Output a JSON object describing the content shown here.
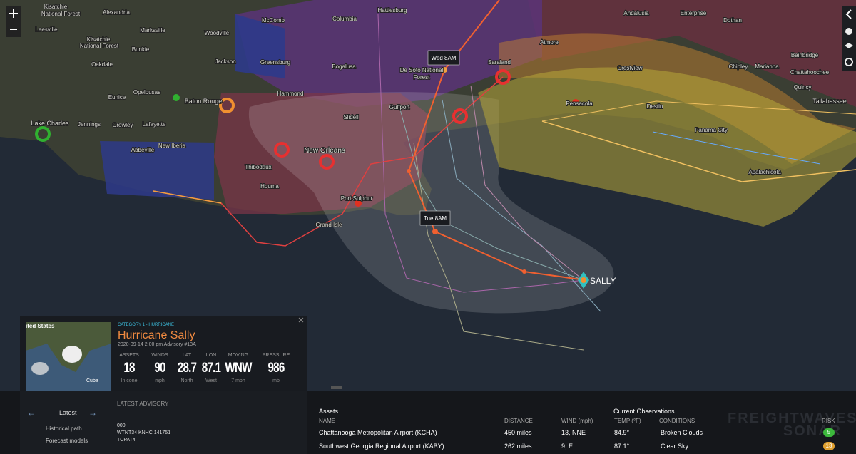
{
  "map": {
    "labels": [
      "Kisatchie",
      "National Forest",
      "Alexandria",
      "Leesville",
      "Marksville",
      "Kisatchie",
      "National Forest",
      "Bunkie",
      "Oakdale",
      "Woodville",
      "McComb",
      "Columbia",
      "Hattiesburg",
      "Andalusia",
      "Enterprise",
      "Dothan",
      "Atmore",
      "Bainbridge",
      "Jackson",
      "Greensburg",
      "Bogalusa",
      "De Soto National",
      "Forest",
      "Saraland",
      "Crestview",
      "Chipley",
      "Marianna",
      "Chattahoochee",
      "Quincy",
      "Tallahassee",
      "Opelousas",
      "Eunice",
      "Baton Rouge",
      "Hammond",
      "Slidell",
      "Gulfport",
      "Pensacola",
      "Destin",
      "Panama City",
      "Apalachicola",
      "Lake Charles",
      "Jennings",
      "Crowley",
      "Lafayette",
      "Abbeville",
      "New Iberia",
      "New Orleans",
      "Thibodaux",
      "Houma",
      "Port Sulphur",
      "Grand Isle"
    ],
    "forecast_points": [
      "Wed 8AM",
      "Tue 8AM"
    ],
    "storm_label": "SALLY"
  },
  "storm_card": {
    "thumbnail_labels": [
      "ited States",
      "Cuba"
    ],
    "category": "CATEGORY 1 - HURRICANE",
    "title": "Hurricane Sally",
    "advisory": "2020-09-14 2:00 pm Advisory #13A",
    "stats": [
      {
        "label": "ASSETS",
        "value": "18",
        "unit": "In cone"
      },
      {
        "label": "WINDS",
        "value": "90",
        "unit": "mph"
      },
      {
        "label": "LAT",
        "value": "28.7",
        "unit": "North"
      },
      {
        "label": "LON",
        "value": "87.1",
        "unit": "West"
      },
      {
        "label": "MOVING",
        "value": "WNW",
        "unit": "7 mph"
      },
      {
        "label": "PRESSURE",
        "value": "986",
        "unit": "mb"
      }
    ]
  },
  "sidebar": {
    "latest": "Latest",
    "layers": [
      "Historical path",
      "Forecast models"
    ],
    "latest_advisory": {
      "heading": "LATEST ADVISORY",
      "lines": [
        "000",
        "WTNT34 KNHC 141751",
        "TCPAT4"
      ]
    }
  },
  "assets": {
    "title": "Assets",
    "observations_title": "Current Observations",
    "columns": [
      "NAME",
      "DISTANCE",
      "WIND (mph)",
      "TEMP (°F)",
      "CONDITIONS",
      "RISK"
    ],
    "rows": [
      [
        "Chattanooga Metropolitan Airport (KCHA)",
        "450 miles",
        "13, NNE",
        "84.9°",
        "Broken Clouds",
        "5"
      ],
      [
        "Southwest Georgia Regional Airport (KABY)",
        "262 miles",
        "9, E",
        "87.1°",
        "Clear Sky",
        "13"
      ]
    ]
  },
  "watermark": "FREIGHTWAVES SONAR"
}
